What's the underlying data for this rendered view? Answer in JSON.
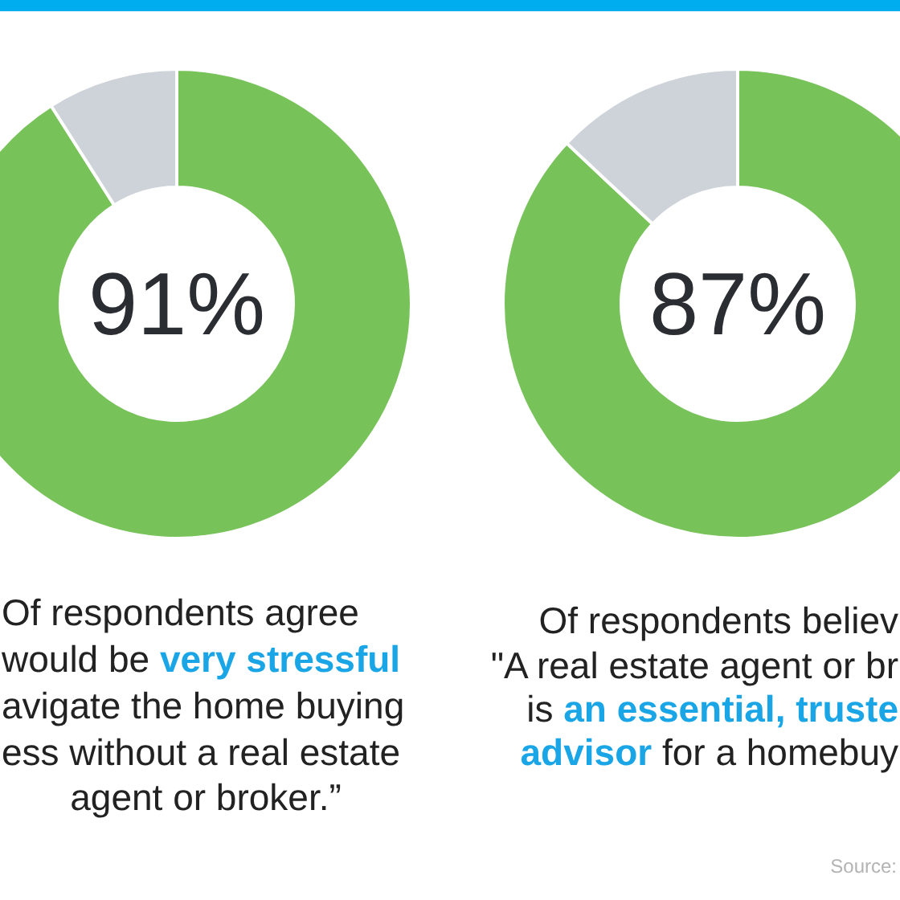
{
  "chart_data": [
    {
      "type": "donut",
      "categories": [
        null,
        null
      ],
      "values": [
        91,
        9
      ],
      "colors": [
        "#77c35a",
        "#cdd3d8"
      ],
      "annotations": [
        "91%",
        "Of respondents agree",
        "would be",
        "very stressful",
        "avigate the home buying",
        "ess without a real estate",
        "agent or broker.”"
      ]
    },
    {
      "type": "donut",
      "categories": [
        null,
        null
      ],
      "values": [
        87,
        13
      ],
      "colors": [
        "#77c35a",
        "#cdd3d8"
      ],
      "annotations": [
        "87%",
        "Of respondents believ",
        "\"A real estate agent or br",
        "is",
        "an essential, truste",
        "advisor",
        "for a homebuy",
        "Source:"
      ]
    }
  ]
}
